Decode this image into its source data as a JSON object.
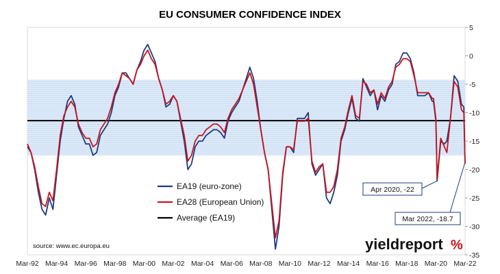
{
  "chart_data": {
    "type": "line",
    "title": "EU CONSUMER CONFIDENCE INDEX",
    "ylim": [
      -35,
      5
    ],
    "yticks": [
      5,
      0,
      -5,
      -10,
      -15,
      -20,
      -25,
      -30,
      -35
    ],
    "xlim": [
      "1992-03",
      "2022-03"
    ],
    "xtick_labels": [
      "Mar-92",
      "Mar-94",
      "Mar-96",
      "Mar-98",
      "Mar-00",
      "Mar-02",
      "Mar-04",
      "Mar-06",
      "Mar-08",
      "Mar-10",
      "Mar-12",
      "Mar-14",
      "Mar-16",
      "Mar-18",
      "Mar-20",
      "Mar-22"
    ],
    "shaded_band": [
      -17.5,
      -4.2
    ],
    "average_line": -11.4,
    "series": [
      {
        "name": "EA19 (euro-zone)",
        "color": "#1f3a7a",
        "points": [
          [
            "1992-03",
            -16
          ],
          [
            "1992-06",
            -17
          ],
          [
            "1992-09",
            -20
          ],
          [
            "1992-12",
            -24
          ],
          [
            "1993-03",
            -27
          ],
          [
            "1993-06",
            -28
          ],
          [
            "1993-09",
            -25
          ],
          [
            "1993-12",
            -27
          ],
          [
            "1994-03",
            -21
          ],
          [
            "1994-06",
            -15
          ],
          [
            "1994-09",
            -11
          ],
          [
            "1994-12",
            -8
          ],
          [
            "1995-03",
            -7
          ],
          [
            "1995-06",
            -8.5
          ],
          [
            "1995-09",
            -12.5
          ],
          [
            "1995-12",
            -14
          ],
          [
            "1996-03",
            -15.5
          ],
          [
            "1996-06",
            -15.5
          ],
          [
            "1996-09",
            -17.5
          ],
          [
            "1996-12",
            -17
          ],
          [
            "1997-03",
            -14
          ],
          [
            "1997-06",
            -13
          ],
          [
            "1997-09",
            -12
          ],
          [
            "1997-12",
            -10
          ],
          [
            "1998-03",
            -7
          ],
          [
            "1998-06",
            -5.5
          ],
          [
            "1998-09",
            -3
          ],
          [
            "1998-12",
            -3
          ],
          [
            "1999-03",
            -4
          ],
          [
            "1999-06",
            -5
          ],
          [
            "1999-09",
            -2.5
          ],
          [
            "1999-12",
            -1
          ],
          [
            "2000-03",
            1
          ],
          [
            "2000-06",
            2
          ],
          [
            "2000-09",
            0.5
          ],
          [
            "2000-12",
            -1
          ],
          [
            "2001-03",
            -4
          ],
          [
            "2001-06",
            -6
          ],
          [
            "2001-09",
            -9
          ],
          [
            "2001-12",
            -8.5
          ],
          [
            "2002-03",
            -7
          ],
          [
            "2002-06",
            -8
          ],
          [
            "2002-09",
            -11.5
          ],
          [
            "2002-12",
            -15
          ],
          [
            "2003-03",
            -20
          ],
          [
            "2003-06",
            -19
          ],
          [
            "2003-09",
            -16
          ],
          [
            "2003-12",
            -15
          ],
          [
            "2004-03",
            -15
          ],
          [
            "2004-06",
            -14
          ],
          [
            "2004-09",
            -13.5
          ],
          [
            "2004-12",
            -13
          ],
          [
            "2005-03",
            -13
          ],
          [
            "2005-06",
            -13.5
          ],
          [
            "2005-09",
            -14.5
          ],
          [
            "2005-12",
            -11.5
          ],
          [
            "2006-03",
            -10
          ],
          [
            "2006-06",
            -9
          ],
          [
            "2006-09",
            -8
          ],
          [
            "2006-12",
            -6
          ],
          [
            "2007-03",
            -4
          ],
          [
            "2007-06",
            -2
          ],
          [
            "2007-09",
            -4
          ],
          [
            "2007-12",
            -8
          ],
          [
            "2008-03",
            -13
          ],
          [
            "2008-06",
            -17
          ],
          [
            "2008-09",
            -20
          ],
          [
            "2008-12",
            -27
          ],
          [
            "2009-03",
            -34
          ],
          [
            "2009-06",
            -30
          ],
          [
            "2009-09",
            -21
          ],
          [
            "2009-12",
            -16
          ],
          [
            "2010-03",
            -16
          ],
          [
            "2010-06",
            -17
          ],
          [
            "2010-09",
            -11
          ],
          [
            "2010-12",
            -11
          ],
          [
            "2011-03",
            -11
          ],
          [
            "2011-06",
            -10
          ],
          [
            "2011-09",
            -19
          ],
          [
            "2011-12",
            -21
          ],
          [
            "2012-03",
            -20
          ],
          [
            "2012-06",
            -19
          ],
          [
            "2012-09",
            -25
          ],
          [
            "2012-12",
            -26
          ],
          [
            "2013-03",
            -24
          ],
          [
            "2013-06",
            -21
          ],
          [
            "2013-09",
            -15
          ],
          [
            "2013-12",
            -13
          ],
          [
            "2014-03",
            -10
          ],
          [
            "2014-06",
            -7.5
          ],
          [
            "2014-09",
            -11
          ],
          [
            "2014-12",
            -11.5
          ],
          [
            "2015-03",
            -4
          ],
          [
            "2015-06",
            -5.5
          ],
          [
            "2015-09",
            -7
          ],
          [
            "2015-12",
            -6
          ],
          [
            "2016-03",
            -9.5
          ],
          [
            "2016-06",
            -7
          ],
          [
            "2016-09",
            -8
          ],
          [
            "2016-12",
            -6
          ],
          [
            "2017-03",
            -5
          ],
          [
            "2017-06",
            -1.5
          ],
          [
            "2017-09",
            -1
          ],
          [
            "2017-12",
            0.5
          ],
          [
            "2018-03",
            0.5
          ],
          [
            "2018-06",
            -0.5
          ],
          [
            "2018-09",
            -3
          ],
          [
            "2018-12",
            -7
          ],
          [
            "2019-03",
            -7
          ],
          [
            "2019-06",
            -7
          ],
          [
            "2019-09",
            -6.5
          ],
          [
            "2019-12",
            -8
          ],
          [
            "2020-01",
            -8
          ],
          [
            "2020-03",
            -11.5
          ],
          [
            "2020-04",
            -22
          ],
          [
            "2020-07",
            -15
          ],
          [
            "2020-10",
            -15.5
          ],
          [
            "2020-12",
            -15
          ],
          [
            "2021-03",
            -11
          ],
          [
            "2021-06",
            -3.5
          ],
          [
            "2021-09",
            -4.5
          ],
          [
            "2021-12",
            -8.5
          ],
          [
            "2022-02",
            -9
          ],
          [
            "2022-03",
            -18.7
          ]
        ]
      },
      {
        "name": "EA28 (European Union)",
        "color": "#c8141e",
        "points": [
          [
            "1992-03",
            -15.5
          ],
          [
            "1992-06",
            -17
          ],
          [
            "1992-09",
            -19.5
          ],
          [
            "1992-12",
            -23
          ],
          [
            "1993-03",
            -26
          ],
          [
            "1993-06",
            -26.5
          ],
          [
            "1993-09",
            -24
          ],
          [
            "1993-12",
            -25.5
          ],
          [
            "1994-03",
            -20
          ],
          [
            "1994-06",
            -14
          ],
          [
            "1994-09",
            -10.5
          ],
          [
            "1994-12",
            -9
          ],
          [
            "1995-03",
            -8
          ],
          [
            "1995-06",
            -9
          ],
          [
            "1995-09",
            -12
          ],
          [
            "1995-12",
            -13.5
          ],
          [
            "1996-03",
            -14.5
          ],
          [
            "1996-06",
            -14.5
          ],
          [
            "1996-09",
            -16
          ],
          [
            "1996-12",
            -15.5
          ],
          [
            "1997-03",
            -13
          ],
          [
            "1997-06",
            -12
          ],
          [
            "1997-09",
            -11
          ],
          [
            "1997-12",
            -9
          ],
          [
            "1998-03",
            -6.5
          ],
          [
            "1998-06",
            -5
          ],
          [
            "1998-09",
            -3
          ],
          [
            "1998-12",
            -3.5
          ],
          [
            "1999-03",
            -4
          ],
          [
            "1999-06",
            -5
          ],
          [
            "1999-09",
            -2.5
          ],
          [
            "1999-12",
            -1.5
          ],
          [
            "2000-03",
            0
          ],
          [
            "2000-06",
            1
          ],
          [
            "2000-09",
            -0.5
          ],
          [
            "2000-12",
            -1.5
          ],
          [
            "2001-03",
            -4
          ],
          [
            "2001-06",
            -6
          ],
          [
            "2001-09",
            -8.5
          ],
          [
            "2001-12",
            -8
          ],
          [
            "2002-03",
            -7
          ],
          [
            "2002-06",
            -8
          ],
          [
            "2002-09",
            -11
          ],
          [
            "2002-12",
            -14
          ],
          [
            "2003-03",
            -18.5
          ],
          [
            "2003-06",
            -17.5
          ],
          [
            "2003-09",
            -15
          ],
          [
            "2003-12",
            -14
          ],
          [
            "2004-03",
            -14
          ],
          [
            "2004-06",
            -13
          ],
          [
            "2004-09",
            -12.5
          ],
          [
            "2004-12",
            -12
          ],
          [
            "2005-03",
            -12
          ],
          [
            "2005-06",
            -12.5
          ],
          [
            "2005-09",
            -13.5
          ],
          [
            "2005-12",
            -11
          ],
          [
            "2006-03",
            -9.5
          ],
          [
            "2006-06",
            -8.5
          ],
          [
            "2006-09",
            -7.5
          ],
          [
            "2006-12",
            -6
          ],
          [
            "2007-03",
            -4.5
          ],
          [
            "2007-06",
            -3
          ],
          [
            "2007-09",
            -5
          ],
          [
            "2007-12",
            -9
          ],
          [
            "2008-03",
            -13
          ],
          [
            "2008-06",
            -17
          ],
          [
            "2008-09",
            -20
          ],
          [
            "2008-12",
            -26
          ],
          [
            "2009-03",
            -32
          ],
          [
            "2009-06",
            -29
          ],
          [
            "2009-09",
            -20.5
          ],
          [
            "2009-12",
            -16
          ],
          [
            "2010-03",
            -16
          ],
          [
            "2010-06",
            -16.5
          ],
          [
            "2010-09",
            -11.5
          ],
          [
            "2010-12",
            -11.5
          ],
          [
            "2011-03",
            -11.5
          ],
          [
            "2011-06",
            -11
          ],
          [
            "2011-09",
            -18.5
          ],
          [
            "2011-12",
            -20.5
          ],
          [
            "2012-03",
            -19.5
          ],
          [
            "2012-06",
            -19
          ],
          [
            "2012-09",
            -24
          ],
          [
            "2012-12",
            -24
          ],
          [
            "2013-03",
            -23
          ],
          [
            "2013-06",
            -20
          ],
          [
            "2013-09",
            -14.5
          ],
          [
            "2013-12",
            -12.5
          ],
          [
            "2014-03",
            -9.5
          ],
          [
            "2014-06",
            -7
          ],
          [
            "2014-09",
            -10.5
          ],
          [
            "2014-12",
            -11
          ],
          [
            "2015-03",
            -4.5
          ],
          [
            "2015-06",
            -5
          ],
          [
            "2015-09",
            -6.5
          ],
          [
            "2015-12",
            -6
          ],
          [
            "2016-03",
            -8.5
          ],
          [
            "2016-06",
            -6.5
          ],
          [
            "2016-09",
            -7.5
          ],
          [
            "2016-12",
            -5.5
          ],
          [
            "2017-03",
            -4.5
          ],
          [
            "2017-06",
            -2
          ],
          [
            "2017-09",
            -1.5
          ],
          [
            "2017-12",
            -0.5
          ],
          [
            "2018-03",
            -0.5
          ],
          [
            "2018-06",
            -1
          ],
          [
            "2018-09",
            -3.5
          ],
          [
            "2018-12",
            -6.5
          ],
          [
            "2019-03",
            -6.5
          ],
          [
            "2019-06",
            -6.5
          ],
          [
            "2019-09",
            -6.5
          ],
          [
            "2019-12",
            -7.5
          ],
          [
            "2020-01",
            -7.5
          ],
          [
            "2020-03",
            -11
          ],
          [
            "2020-04",
            -21.5
          ],
          [
            "2020-07",
            -14.5
          ],
          [
            "2020-10",
            -16
          ],
          [
            "2020-12",
            -17
          ],
          [
            "2021-03",
            -11
          ],
          [
            "2021-06",
            -4.5
          ],
          [
            "2021-09",
            -5.5
          ],
          [
            "2021-12",
            -9.5
          ],
          [
            "2022-02",
            -10
          ],
          [
            "2022-03",
            -19
          ]
        ]
      }
    ],
    "legend": [
      {
        "label": "EA19 (euro-zone)",
        "color": "#1f3a7a"
      },
      {
        "label": "EA28 (European Union)",
        "color": "#c8141e"
      },
      {
        "label": "Average (EA19)",
        "color": "#000000"
      }
    ],
    "annotations": [
      {
        "text": "Apr 2020, -22",
        "x": "2020-04",
        "y": -22
      },
      {
        "text": "Mar 2022, -18.7",
        "x": "2022-03",
        "y": -18.7
      }
    ],
    "source": "source: www.ec.europa.eu",
    "grid": false
  },
  "logo": {
    "main": "yieldreport",
    "pct": "%",
    "pct_color": "#c8141e"
  }
}
